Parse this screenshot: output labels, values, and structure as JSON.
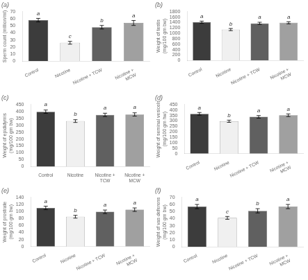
{
  "chart_data": [
    {
      "type": "bar",
      "title": "(a)",
      "ylabel": "Sperm count (million/ml)",
      "categories": [
        "Control",
        "Nicotine",
        "Nicotine + TCW",
        "Nicotine +\nMCW"
      ],
      "values": [
        58,
        26,
        48,
        54
      ],
      "errors": [
        2.5,
        2.0,
        2.5,
        3.5
      ],
      "annotations": [
        "a",
        "c",
        "b",
        "a"
      ],
      "colors": [
        "#3c3c3c",
        "#f0f0f0",
        "#606060",
        "#a0a0a0"
      ],
      "ylim": [
        0,
        70
      ],
      "yticks": [
        0,
        10,
        20,
        30,
        40,
        50,
        60,
        70
      ],
      "grid": false
    },
    {
      "type": "bar",
      "title": "(b)",
      "ylabel": "Weight of testis\n(mg/100 gm bw)",
      "categories": [
        "Control",
        "Nicotine",
        "Nicotine + TCW",
        "Nicotine +\nMCW"
      ],
      "values": [
        1410,
        1140,
        1370,
        1390
      ],
      "errors": [
        40,
        40,
        40,
        40
      ],
      "annotations": [
        "a",
        "b",
        "a",
        "a"
      ],
      "colors": [
        "#3c3c3c",
        "#f0f0f0",
        "#606060",
        "#a0a0a0"
      ],
      "ylim": [
        0,
        1800
      ],
      "yticks": [
        0,
        200,
        400,
        600,
        800,
        1000,
        1200,
        1400,
        1600,
        1800
      ],
      "grid": false
    },
    {
      "type": "bar",
      "title": "(c)",
      "ylabel": "Weight of epididymis\n(mg/100 gm bw)",
      "categories": [
        "Control",
        "Nicotine",
        "Nicotine +\nTCW",
        "Nicotine +\nMCW"
      ],
      "values": [
        398,
        330,
        375,
        378
      ],
      "errors": [
        12,
        10,
        12,
        12
      ],
      "annotations": [
        "a",
        "b",
        "a",
        "a"
      ],
      "colors": [
        "#3c3c3c",
        "#f0f0f0",
        "#606060",
        "#a0a0a0"
      ],
      "ylim": [
        0,
        450
      ],
      "yticks": [
        0,
        50,
        100,
        150,
        200,
        250,
        300,
        350,
        400,
        450
      ],
      "grid": false
    },
    {
      "type": "bar",
      "title": "(d)",
      "ylabel": "Weight of seminal vesicels\n(mg/100 gm hw)",
      "categories": [
        "Control",
        "Nicotine",
        "Nicotine + TCW",
        "Nicotine +\nMCW"
      ],
      "values": [
        365,
        297,
        337,
        352
      ],
      "errors": [
        12,
        10,
        12,
        12
      ],
      "annotations": [
        "a",
        "b",
        "a",
        "a"
      ],
      "colors": [
        "#3c3c3c",
        "#f0f0f0",
        "#606060",
        "#a0a0a0"
      ],
      "ylim": [
        0,
        450
      ],
      "yticks": [
        0,
        50,
        100,
        150,
        200,
        250,
        300,
        350,
        400,
        450
      ],
      "grid": false
    },
    {
      "type": "bar",
      "title": "(e)",
      "ylabel": "Weight of prostrate\n(mg/100 gm bw)",
      "categories": [
        "Control",
        "Nicotine",
        "Nicotine + TCW",
        "Nicotine +\nMCW"
      ],
      "values": [
        110,
        85,
        99,
        105
      ],
      "errors": [
        5,
        4,
        5,
        5
      ],
      "annotations": [
        "a",
        "b",
        "a",
        "a"
      ],
      "colors": [
        "#3c3c3c",
        "#f0f0f0",
        "#606060",
        "#a0a0a0"
      ],
      "ylim": [
        0,
        140
      ],
      "yticks": [
        0,
        20,
        40,
        60,
        80,
        100,
        120,
        140
      ],
      "grid": false
    },
    {
      "type": "bar",
      "title": "(f)",
      "ylabel": "Weight of vas deferens\n(mg/100 gm bw)",
      "categories": [
        "Control",
        "Nicotine",
        "Nicotine + TCW",
        "Nicotine +\nMCW"
      ],
      "values": [
        57,
        41,
        51,
        57
      ],
      "errors": [
        3,
        2,
        3,
        3
      ],
      "annotations": [
        "a",
        "c",
        "b",
        "a"
      ],
      "colors": [
        "#3c3c3c",
        "#f0f0f0",
        "#606060",
        "#a0a0a0"
      ],
      "ylim": [
        0,
        70
      ],
      "yticks": [
        0,
        10,
        20,
        30,
        40,
        50,
        60,
        70
      ],
      "grid": false
    }
  ]
}
